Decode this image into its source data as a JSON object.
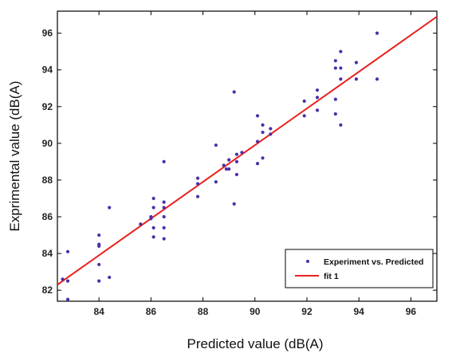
{
  "chart_data": {
    "type": "scatter",
    "title": "",
    "xlabel": "Predicted value (dB(A)",
    "ylabel": "Exprimental value (dB(A)",
    "xlim": [
      82.4,
      97.0
    ],
    "ylim": [
      81.4,
      97.2
    ],
    "xticks": [
      84,
      86,
      88,
      90,
      92,
      94,
      96
    ],
    "yticks": [
      82,
      84,
      86,
      88,
      90,
      92,
      94,
      96
    ],
    "grid": false,
    "legend_position": "bottom-right",
    "series": [
      {
        "name": "Experiment vs. Predicted",
        "kind": "scatter",
        "color": "#4b2fa8",
        "points": [
          [
            82.6,
            82.6
          ],
          [
            82.8,
            84.1
          ],
          [
            82.8,
            82.5
          ],
          [
            82.8,
            81.5
          ],
          [
            84.0,
            85.0
          ],
          [
            84.0,
            84.5
          ],
          [
            84.0,
            84.4
          ],
          [
            84.0,
            83.4
          ],
          [
            84.0,
            82.5
          ],
          [
            84.4,
            86.5
          ],
          [
            84.4,
            82.7
          ],
          [
            85.6,
            85.6
          ],
          [
            86.0,
            85.9
          ],
          [
            86.0,
            86.0
          ],
          [
            86.1,
            87.0
          ],
          [
            86.1,
            86.5
          ],
          [
            86.1,
            85.4
          ],
          [
            86.1,
            84.9
          ],
          [
            86.5,
            89.0
          ],
          [
            86.5,
            86.8
          ],
          [
            86.5,
            86.5
          ],
          [
            86.5,
            86.0
          ],
          [
            86.5,
            85.4
          ],
          [
            86.5,
            84.8
          ],
          [
            87.8,
            88.1
          ],
          [
            87.8,
            87.8
          ],
          [
            87.8,
            87.1
          ],
          [
            88.5,
            89.9
          ],
          [
            88.5,
            87.9
          ],
          [
            88.8,
            88.8
          ],
          [
            88.9,
            88.6
          ],
          [
            89.0,
            89.1
          ],
          [
            89.0,
            88.6
          ],
          [
            89.2,
            92.8
          ],
          [
            89.2,
            86.7
          ],
          [
            89.3,
            89.4
          ],
          [
            89.3,
            89.0
          ],
          [
            89.3,
            88.3
          ],
          [
            89.5,
            89.5
          ],
          [
            90.1,
            91.5
          ],
          [
            90.1,
            90.1
          ],
          [
            90.1,
            88.9
          ],
          [
            90.3,
            91.0
          ],
          [
            90.3,
            90.6
          ],
          [
            90.3,
            89.2
          ],
          [
            90.6,
            90.8
          ],
          [
            90.6,
            90.5
          ],
          [
            91.9,
            92.3
          ],
          [
            91.9,
            91.5
          ],
          [
            92.4,
            92.9
          ],
          [
            92.4,
            92.5
          ],
          [
            92.4,
            91.8
          ],
          [
            93.1,
            94.5
          ],
          [
            93.1,
            94.1
          ],
          [
            93.1,
            92.4
          ],
          [
            93.1,
            91.6
          ],
          [
            93.3,
            95.0
          ],
          [
            93.3,
            94.1
          ],
          [
            93.3,
            93.5
          ],
          [
            93.3,
            91.0
          ],
          [
            93.9,
            94.4
          ],
          [
            93.9,
            93.5
          ],
          [
            94.7,
            96.0
          ],
          [
            94.7,
            93.5
          ]
        ]
      },
      {
        "name": "fit 1",
        "kind": "line",
        "color": "#e8201e",
        "points": [
          [
            82.4,
            82.3
          ],
          [
            97.0,
            96.9
          ]
        ]
      }
    ]
  }
}
